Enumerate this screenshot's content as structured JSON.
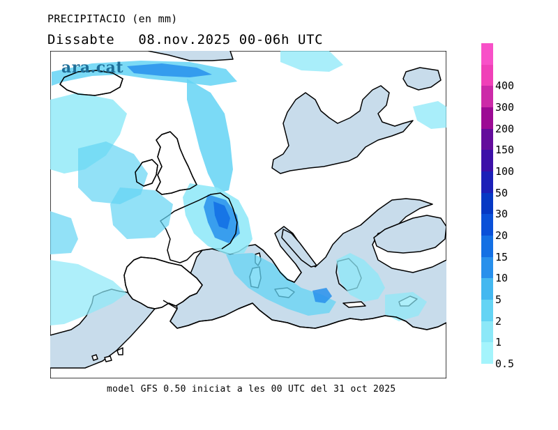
{
  "header": {
    "title": "PRECIPITACIO (en mm)",
    "day": "Dissabte",
    "date_time": "08.nov.2025 00-06h UTC"
  },
  "logo": {
    "text": "ara.cat"
  },
  "footer": {
    "text": "model GFS 0.50 iniciat a les 00 UTC del 31 oct 2025"
  },
  "legend": {
    "items": [
      {
        "label": "0.5",
        "color": "#a4f4fc"
      },
      {
        "label": "1",
        "color": "#8ce8f8"
      },
      {
        "label": "2",
        "color": "#64d4f4"
      },
      {
        "label": "5",
        "color": "#44b8f0"
      },
      {
        "label": "10",
        "color": "#2890ec"
      },
      {
        "label": "15",
        "color": "#1470e4"
      },
      {
        "label": "20",
        "color": "#0a50d8"
      },
      {
        "label": "30",
        "color": "#0638c4"
      },
      {
        "label": "50",
        "color": "#1c20b8"
      },
      {
        "label": "100",
        "color": "#3c10a8"
      },
      {
        "label": "150",
        "color": "#640c9c"
      },
      {
        "label": "200",
        "color": "#9c0a94"
      },
      {
        "label": "300",
        "color": "#cc2aa8"
      },
      {
        "label": "400",
        "color": "#f040b8"
      },
      {
        "label": "",
        "color": "#f850c8"
      }
    ]
  },
  "map": {
    "sea_color": "#c8dceb",
    "land_color": "#ffffff",
    "coast_color": "#000000"
  }
}
